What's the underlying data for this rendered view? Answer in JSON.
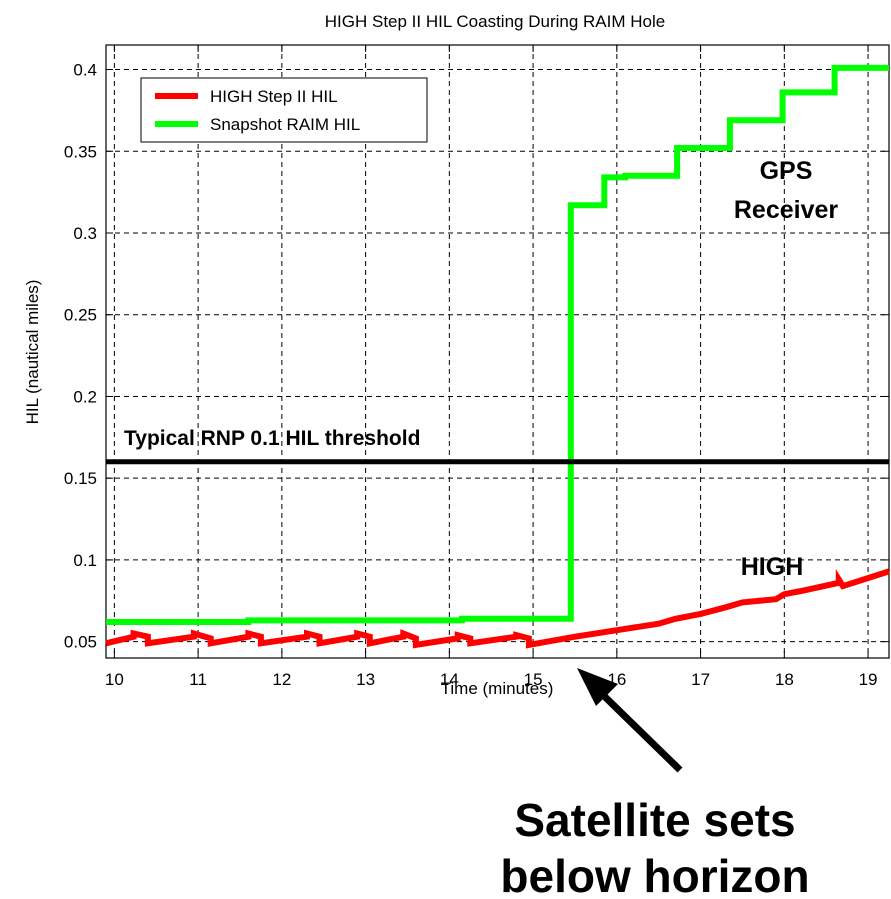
{
  "chart_data": {
    "type": "line",
    "title": "HIGH Step II HIL Coasting During RAIM Hole",
    "xlabel": "Time (minutes)",
    "ylabel": "HIL (nautical miles)",
    "xlim": [
      9.9,
      19.25
    ],
    "ylim": [
      0.04,
      0.415
    ],
    "xticks": [
      10,
      11,
      12,
      13,
      14,
      15,
      16,
      17,
      18,
      19
    ],
    "yticks": [
      0.05,
      0.1,
      0.15,
      0.2,
      0.25,
      0.3,
      0.35,
      0.4
    ],
    "ytick_labels": [
      "0.05",
      "0.1",
      "0.15",
      "0.2",
      "0.25",
      "0.3",
      "0.35",
      "0.4"
    ],
    "grid": true,
    "legend_position": "top-left",
    "series": [
      {
        "name": "HIGH Step II HIL",
        "color": "#ff0000",
        "points": [
          [
            9.9,
            0.049
          ],
          [
            10.23,
            0.053
          ],
          [
            10.23,
            0.055
          ],
          [
            10.4,
            0.053
          ],
          [
            10.4,
            0.049
          ],
          [
            10.95,
            0.053
          ],
          [
            10.95,
            0.055
          ],
          [
            11.15,
            0.052
          ],
          [
            11.15,
            0.049
          ],
          [
            11.6,
            0.053
          ],
          [
            11.6,
            0.055
          ],
          [
            11.75,
            0.053
          ],
          [
            11.75,
            0.049
          ],
          [
            12.3,
            0.053
          ],
          [
            12.3,
            0.055
          ],
          [
            12.45,
            0.053
          ],
          [
            12.45,
            0.049
          ],
          [
            12.9,
            0.053
          ],
          [
            12.9,
            0.055
          ],
          [
            13.05,
            0.053
          ],
          [
            13.05,
            0.049
          ],
          [
            13.45,
            0.053
          ],
          [
            13.45,
            0.055
          ],
          [
            13.6,
            0.052
          ],
          [
            13.6,
            0.048
          ],
          [
            14.1,
            0.052
          ],
          [
            14.1,
            0.054
          ],
          [
            14.25,
            0.052
          ],
          [
            14.25,
            0.049
          ],
          [
            14.8,
            0.053
          ],
          [
            14.8,
            0.054
          ],
          [
            14.95,
            0.052
          ],
          [
            14.95,
            0.048
          ],
          [
            15.5,
            0.053
          ],
          [
            16.0,
            0.057
          ],
          [
            16.5,
            0.061
          ],
          [
            16.7,
            0.064
          ],
          [
            17.0,
            0.067
          ],
          [
            17.3,
            0.071
          ],
          [
            17.5,
            0.074
          ],
          [
            17.9,
            0.076
          ],
          [
            18.0,
            0.079
          ],
          [
            18.2,
            0.081
          ],
          [
            18.65,
            0.086
          ],
          [
            18.65,
            0.088
          ],
          [
            18.7,
            0.084
          ],
          [
            19.25,
            0.093
          ]
        ]
      },
      {
        "name": "Snapshot RAIM HIL",
        "color": "#00ff00",
        "points": [
          [
            9.9,
            0.062
          ],
          [
            11.6,
            0.062
          ],
          [
            11.6,
            0.063
          ],
          [
            14.15,
            0.063
          ],
          [
            14.15,
            0.064
          ],
          [
            15.45,
            0.064
          ],
          [
            15.45,
            0.317
          ],
          [
            15.85,
            0.317
          ],
          [
            15.85,
            0.334
          ],
          [
            16.1,
            0.334
          ],
          [
            16.1,
            0.335
          ],
          [
            16.72,
            0.335
          ],
          [
            16.72,
            0.352
          ],
          [
            17.35,
            0.352
          ],
          [
            17.35,
            0.369
          ],
          [
            17.98,
            0.369
          ],
          [
            17.98,
            0.386
          ],
          [
            18.6,
            0.386
          ],
          [
            18.6,
            0.401
          ],
          [
            19.25,
            0.401
          ]
        ]
      },
      {
        "name": "Typical RNP 0.1 HIL threshold",
        "color": "#000000",
        "points": [
          [
            9.9,
            0.16
          ],
          [
            19.25,
            0.16
          ]
        ]
      }
    ],
    "annotations": [
      {
        "text": "Typical RNP 0.1 HIL threshold",
        "x": 10.05,
        "y": 0.168
      },
      {
        "text": "GPS",
        "x": 17.8,
        "y": 0.375
      },
      {
        "text": "Receiver",
        "x": 17.75,
        "y": 0.34
      },
      {
        "text": "HIGH",
        "x": 17.8,
        "y": 0.1
      },
      {
        "text": "Satellite sets",
        "line2": "below horizon"
      }
    ]
  }
}
